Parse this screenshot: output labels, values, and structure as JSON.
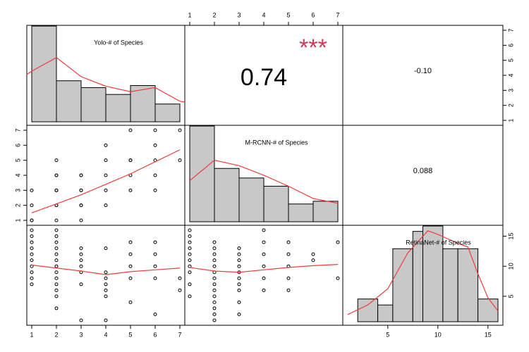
{
  "chart_data": {
    "type": "scatterplot-matrix",
    "variables": [
      "Yolo-# of Species",
      "M-RCNN-# of Species",
      "RetinaNet-# of Species"
    ],
    "axes": {
      "bottom_col1": {
        "ticks": [
          1,
          2,
          3,
          4,
          5,
          6,
          7
        ]
      },
      "top_col2": {
        "ticks": [
          1,
          2,
          3,
          4,
          5,
          6,
          7
        ]
      },
      "right_row1": {
        "ticks": [
          1,
          2,
          3,
          4,
          5,
          6,
          7
        ]
      },
      "left_row2": {
        "ticks": [
          1,
          2,
          3,
          4,
          5,
          6,
          7
        ]
      },
      "right_row3": {
        "ticks": [
          5,
          10,
          15
        ]
      },
      "bottom_col3": {
        "ticks": [
          5,
          10,
          15
        ]
      }
    },
    "correlations": [
      {
        "pair": "Yolo vs M-RCNN",
        "value": "0.74",
        "stars": "***"
      },
      {
        "pair": "Yolo vs RetinaNet",
        "value": "-0.10",
        "stars": ""
      },
      {
        "pair": "M-RCNN vs RetinaNet",
        "value": "0.088",
        "stars": ""
      }
    ],
    "histograms": [
      {
        "variable": "Yolo-# of Species",
        "range": [
          1,
          7
        ],
        "bins": [
          [
            1,
            2,
            7
          ],
          [
            2,
            3,
            3
          ],
          [
            3,
            4,
            2.5
          ],
          [
            4,
            5,
            2
          ],
          [
            5,
            6,
            2.65
          ],
          [
            6,
            7,
            1.3
          ]
        ],
        "count_max": 7,
        "density": [
          [
            0,
            2.5
          ],
          [
            1,
            3.7
          ],
          [
            2,
            4.7
          ],
          [
            3,
            3.3
          ],
          [
            4,
            2.6
          ],
          [
            5,
            2.2
          ],
          [
            6,
            2.5
          ],
          [
            7,
            1.5
          ],
          [
            8,
            1.2
          ]
        ]
      },
      {
        "variable": "M-RCNN-# of Species",
        "range": [
          1,
          7
        ],
        "bins": [
          [
            1,
            2,
            7
          ],
          [
            2,
            3,
            3.9
          ],
          [
            3,
            4,
            3.2
          ],
          [
            4,
            5,
            2.6
          ],
          [
            5,
            6,
            1.3
          ],
          [
            6,
            7,
            1.5
          ]
        ],
        "count_max": 7,
        "density": [
          [
            1,
            3.0
          ],
          [
            2,
            4.5
          ],
          [
            3,
            4.1
          ],
          [
            4,
            3.4
          ],
          [
            5,
            2.6
          ],
          [
            6,
            1.7
          ],
          [
            7,
            1.35
          ]
        ]
      },
      {
        "variable": "RetinaNet-# of Species",
        "range": [
          1,
          16
        ],
        "bins": [
          [
            2,
            4,
            3.8
          ],
          [
            4,
            5.5,
            2.8
          ],
          [
            5.5,
            7.5,
            12.2
          ],
          [
            7.5,
            8.5,
            15.1
          ],
          [
            8.5,
            10.5,
            16
          ],
          [
            10.5,
            12,
            12.2
          ],
          [
            12,
            14,
            12.2
          ],
          [
            14,
            16,
            3.8
          ]
        ],
        "count_max": 16,
        "density": [
          [
            1,
            1.2
          ],
          [
            3,
            2.8
          ],
          [
            5,
            5.5
          ],
          [
            7,
            11.5
          ],
          [
            9,
            15.2
          ],
          [
            10,
            14.6
          ],
          [
            12,
            13.1
          ],
          [
            13,
            12.5
          ],
          [
            14,
            8
          ],
          [
            15,
            4
          ],
          [
            16,
            1.8
          ]
        ]
      }
    ],
    "scatter": {
      "m_rcnn_vs_yolo": {
        "points": [
          [
            1,
            1
          ],
          [
            1,
            1
          ],
          [
            1,
            2
          ],
          [
            1,
            3
          ],
          [
            2,
            1
          ],
          [
            2,
            2
          ],
          [
            2,
            2
          ],
          [
            2,
            3
          ],
          [
            2,
            3
          ],
          [
            2,
            4
          ],
          [
            2,
            4
          ],
          [
            2,
            5
          ],
          [
            3,
            1
          ],
          [
            3,
            2
          ],
          [
            3,
            2
          ],
          [
            3,
            3
          ],
          [
            3,
            3
          ],
          [
            3,
            4
          ],
          [
            3,
            4
          ],
          [
            4,
            2
          ],
          [
            4,
            3
          ],
          [
            4,
            4
          ],
          [
            4,
            5
          ],
          [
            4,
            6
          ],
          [
            5,
            3
          ],
          [
            5,
            4
          ],
          [
            5,
            5
          ],
          [
            5,
            5
          ],
          [
            5,
            7
          ],
          [
            6,
            3
          ],
          [
            6,
            4
          ],
          [
            6,
            5
          ],
          [
            6,
            6
          ],
          [
            6,
            7
          ],
          [
            7,
            5
          ],
          [
            7,
            7
          ]
        ],
        "trend": [
          [
            1,
            1.5
          ],
          [
            2,
            2.1
          ],
          [
            3,
            2.7
          ],
          [
            4,
            3.4
          ],
          [
            5,
            4.1
          ],
          [
            6,
            4.9
          ],
          [
            7,
            5.7
          ]
        ]
      },
      "retinanet_vs_yolo": {
        "points": [
          [
            1,
            7
          ],
          [
            1,
            8
          ],
          [
            1,
            9
          ],
          [
            1,
            10
          ],
          [
            1,
            11
          ],
          [
            1,
            12
          ],
          [
            1,
            13
          ],
          [
            1,
            14
          ],
          [
            1,
            15
          ],
          [
            1,
            16
          ],
          [
            2,
            3
          ],
          [
            2,
            5
          ],
          [
            2,
            6
          ],
          [
            2,
            7
          ],
          [
            2,
            8
          ],
          [
            2,
            9
          ],
          [
            2,
            10
          ],
          [
            2,
            11
          ],
          [
            2,
            12
          ],
          [
            2,
            13
          ],
          [
            2,
            14
          ],
          [
            2,
            15
          ],
          [
            2,
            16
          ],
          [
            3,
            1
          ],
          [
            3,
            7
          ],
          [
            3,
            9
          ],
          [
            3,
            10
          ],
          [
            3,
            11
          ],
          [
            3,
            12
          ],
          [
            3,
            13
          ],
          [
            4,
            1
          ],
          [
            4,
            5
          ],
          [
            4,
            6
          ],
          [
            4,
            7
          ],
          [
            4,
            8
          ],
          [
            4,
            9
          ],
          [
            4,
            13
          ],
          [
            5,
            4
          ],
          [
            5,
            8
          ],
          [
            5,
            10
          ],
          [
            5,
            12
          ],
          [
            5,
            14
          ],
          [
            6,
            2
          ],
          [
            6,
            8
          ],
          [
            6,
            10
          ],
          [
            6,
            12
          ],
          [
            6,
            14
          ],
          [
            7,
            6
          ],
          [
            7,
            8
          ]
        ],
        "trend": [
          [
            1,
            10.2
          ],
          [
            2,
            9.7
          ],
          [
            3,
            9.2
          ],
          [
            4,
            8.6
          ],
          [
            5,
            9.1
          ],
          [
            6,
            9.4
          ],
          [
            7,
            9.7
          ]
        ]
      },
      "retinanet_vs_m_rcnn": {
        "points": [
          [
            1,
            5
          ],
          [
            1,
            7
          ],
          [
            1,
            9
          ],
          [
            1,
            10
          ],
          [
            1,
            11
          ],
          [
            1,
            12
          ],
          [
            1,
            13
          ],
          [
            1,
            14
          ],
          [
            1,
            15
          ],
          [
            1,
            16
          ],
          [
            2,
            1
          ],
          [
            2,
            2
          ],
          [
            2,
            3
          ],
          [
            2,
            4
          ],
          [
            2,
            5
          ],
          [
            2,
            6
          ],
          [
            2,
            7
          ],
          [
            2,
            8
          ],
          [
            2,
            9
          ],
          [
            2,
            10
          ],
          [
            2,
            11
          ],
          [
            2,
            12
          ],
          [
            2,
            13
          ],
          [
            2,
            14
          ],
          [
            3,
            2
          ],
          [
            3,
            4
          ],
          [
            3,
            6
          ],
          [
            3,
            7
          ],
          [
            3,
            8
          ],
          [
            3,
            9
          ],
          [
            3,
            10
          ],
          [
            3,
            11
          ],
          [
            3,
            12
          ],
          [
            3,
            13
          ],
          [
            4,
            6
          ],
          [
            4,
            8
          ],
          [
            4,
            10
          ],
          [
            4,
            12
          ],
          [
            4,
            14
          ],
          [
            4,
            16
          ],
          [
            5,
            6
          ],
          [
            5,
            8
          ],
          [
            5,
            10
          ],
          [
            5,
            12
          ],
          [
            5,
            14
          ],
          [
            6,
            11
          ],
          [
            6,
            12
          ],
          [
            7,
            8
          ],
          [
            7,
            14
          ]
        ],
        "trend": [
          [
            1,
            9.8
          ],
          [
            2,
            9.2
          ],
          [
            3,
            9.0
          ],
          [
            4,
            9.4
          ],
          [
            5,
            9.8
          ],
          [
            6,
            10.1
          ],
          [
            7,
            10.3
          ]
        ]
      }
    },
    "colors": {
      "bar_fill": "#c8c8c8",
      "bar_stroke": "#000000",
      "density_line": "#f03c3c",
      "trend_line": "#f03c3c",
      "stars": "#cc3a5a",
      "point": "#000000"
    }
  }
}
